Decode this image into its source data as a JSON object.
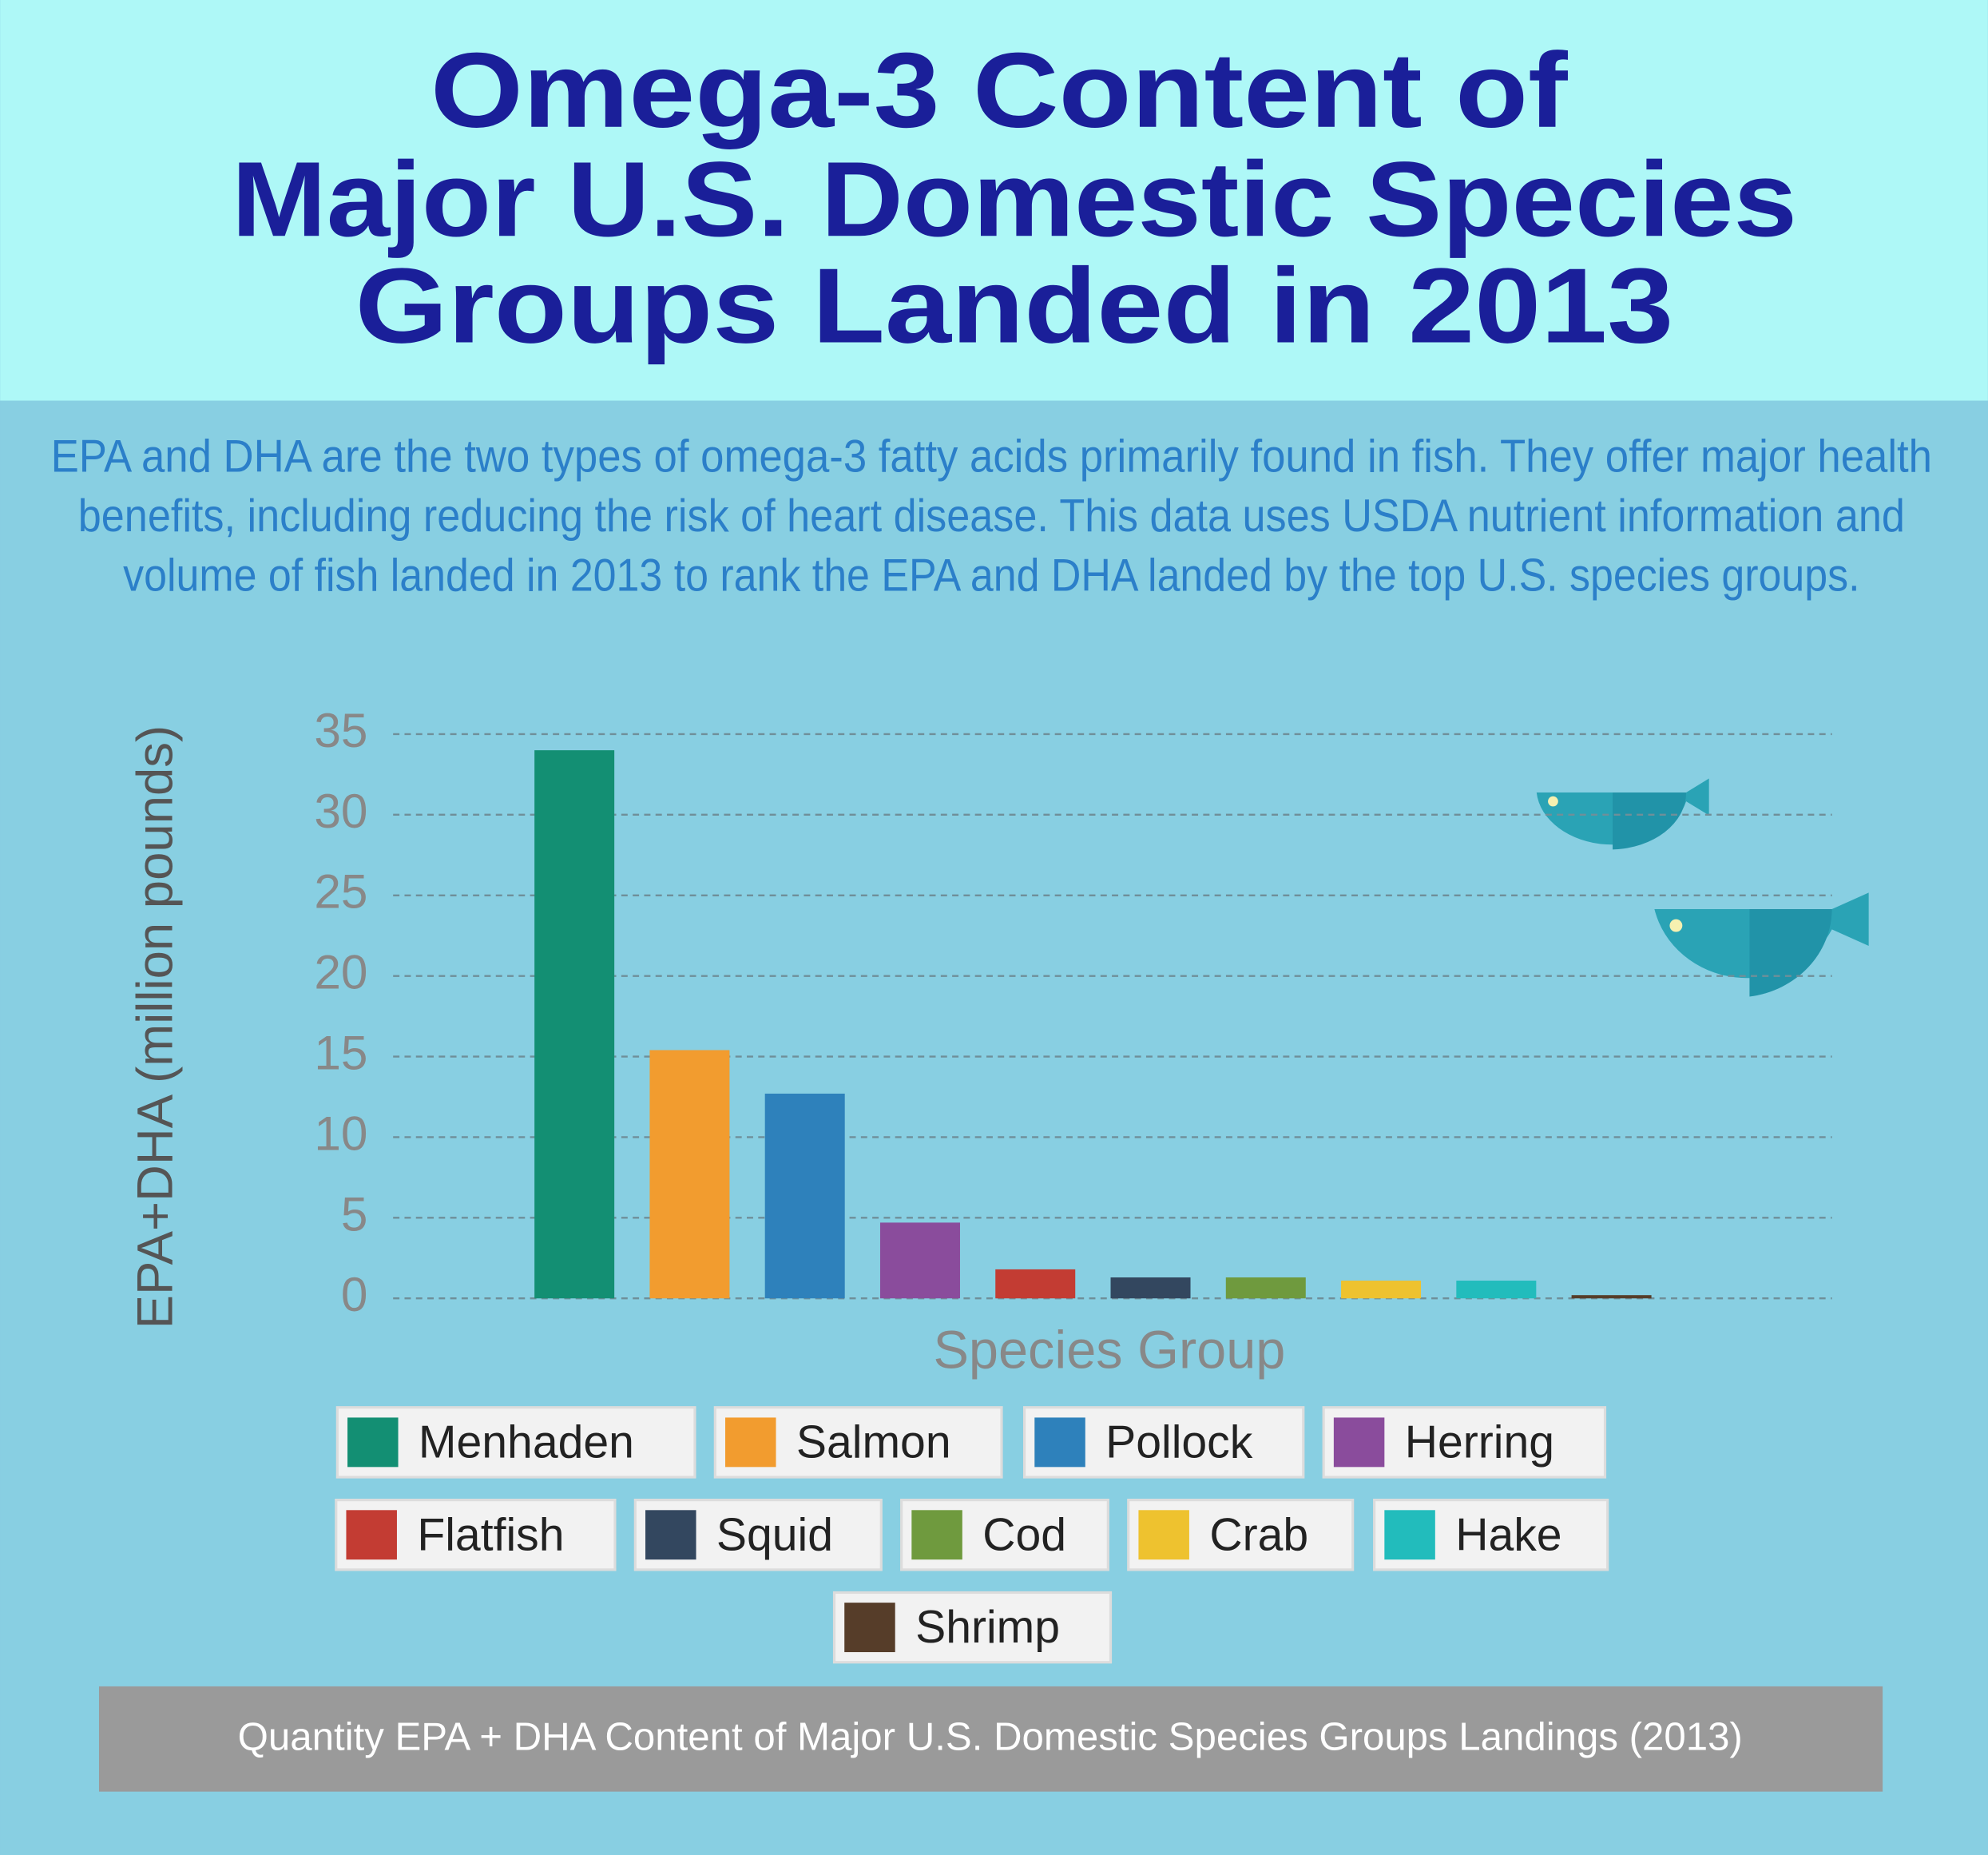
{
  "chart_data": {
    "type": "bar",
    "title": [
      "Omega-3 Content of",
      "Major U.S. Domestic Species",
      "Groups Landed in 2013"
    ],
    "subtitle": [
      "EPA and DHA are the two types of omega-3 fatty acids primarily found in fish. They offer major health",
      "benefits, including reducing the risk of heart disease. This data uses USDA nutrient information and",
      "volume of fish landed in 2013 to rank the EPA and DHA landed by the top U.S. species groups."
    ],
    "y_label": "EPA+DHA (million pounds)",
    "x_label": "Species Group",
    "categories": [
      "Menhaden",
      "Salmon",
      "Pollock",
      "Herring",
      "Flatfish",
      "Squid",
      "Cod",
      "Crab",
      "Hake",
      "Shrimp"
    ],
    "values": [
      34,
      15.4,
      12.7,
      4.7,
      1.8,
      1.3,
      1.3,
      1.1,
      1.1,
      0.2
    ],
    "colors": [
      "#138f73",
      "#f29c2f",
      "#2e81bb",
      "#8a4c9c",
      "#c33c33",
      "#33475f",
      "#6f9a3e",
      "#eec22f",
      "#22bcbc",
      "#563d29"
    ],
    "ylim": [
      0,
      35
    ],
    "yticks": [
      0,
      5,
      10,
      15,
      20,
      25,
      30,
      35
    ],
    "grid": true,
    "caption": "Quantity EPA + DHA Content of Major U.S. Domestic Species Groups Landings (2013)"
  }
}
